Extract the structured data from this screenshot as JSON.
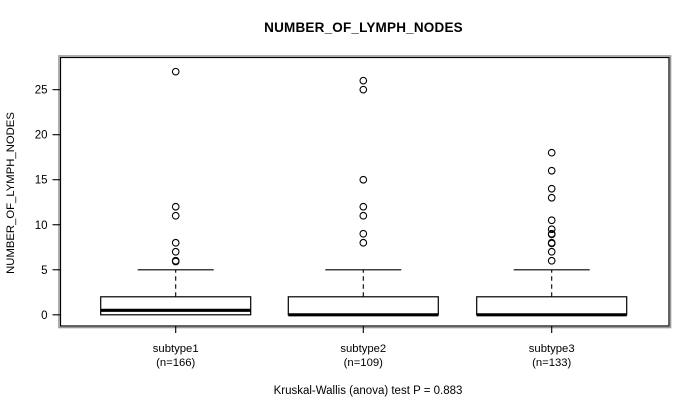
{
  "chart_data": {
    "type": "boxplot",
    "title": "NUMBER_OF_LYMPH_NODES",
    "ylabel": "NUMBER_OF_LYMPH_NODES",
    "xlabel": "",
    "caption": "Kruskal-Wallis (anova) test P = 0.883",
    "stat_test": {
      "name": "Kruskal-Wallis (anova) test",
      "p_value": "0.883"
    },
    "y_ticks": [
      0,
      5,
      10,
      15,
      20,
      25
    ],
    "ylim": [
      -1.3,
      28.6
    ],
    "grid": false,
    "legend_position": "none",
    "colors": {
      "stroke": "#000000",
      "box_fill": "#ffffff",
      "frame_shadow": "#999999",
      "background": "#ffffff"
    },
    "groups": [
      {
        "label": "subtype1",
        "n_label": "(n=166)",
        "n": 166,
        "q1": 0,
        "median": 0.5,
        "q3": 2,
        "whisker_low": 0,
        "whisker_high": 5,
        "outliers": [
          6,
          6,
          7,
          8,
          11,
          12,
          27
        ]
      },
      {
        "label": "subtype2",
        "n_label": "(n=109)",
        "n": 109,
        "q1": 0,
        "median": 0,
        "q3": 2,
        "whisker_low": 0,
        "whisker_high": 5,
        "outliers": [
          8,
          9,
          11,
          12,
          15,
          25,
          26
        ]
      },
      {
        "label": "subtype3",
        "n_label": "(n=133)",
        "n": 133,
        "q1": 0,
        "median": 0,
        "q3": 2,
        "whisker_low": 0,
        "whisker_high": 5,
        "outliers": [
          6,
          7,
          8,
          8,
          9,
          9,
          9.5,
          10.5,
          13,
          14,
          16,
          18
        ]
      }
    ]
  }
}
